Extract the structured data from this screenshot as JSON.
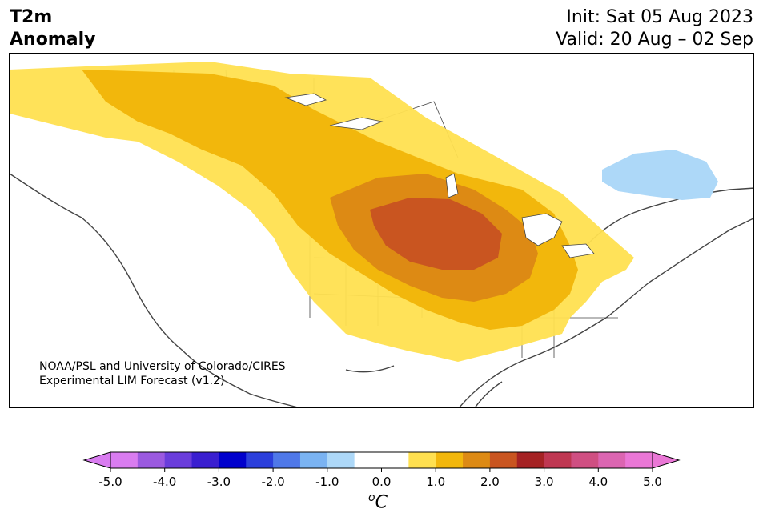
{
  "header": {
    "title_line1": "T2m",
    "title_line2": "Anomaly",
    "init": "Init: Sat 05 Aug 2023",
    "valid": "Valid: 20 Aug – 02 Sep"
  },
  "credit": {
    "line1": "NOAA/PSL and University of Colorado/CIRES",
    "line2": "Experimental LIM Forecast (v1.2)"
  },
  "colorbar": {
    "unit_main": "C",
    "unit_sup": "o",
    "ticks": [
      "-5.0",
      "-4.0",
      "-3.0",
      "-2.0",
      "-1.0",
      "0.0",
      "1.0",
      "2.0",
      "3.0",
      "4.0",
      "5.0"
    ],
    "colors": [
      "#d97cf0",
      "#9b59e0",
      "#6a3ddb",
      "#3a1fd0",
      "#0000cc",
      "#2b3fdb",
      "#4f78e8",
      "#7ab3f2",
      "#add8f8",
      "#ffffff",
      "#ffffff",
      "#ffe050",
      "#f2b70c",
      "#dd8a14",
      "#c95520",
      "#a52224",
      "#bf3752",
      "#cf4f82",
      "#db65b1",
      "#ea77d6"
    ],
    "min": -5.0,
    "max": 5.0
  },
  "map": {
    "layers": [
      "warm-anomaly-yellow",
      "warm-anomaly-gold",
      "warm-anomaly-orange",
      "warm-anomaly-dark-orange",
      "cool-anomaly-blue"
    ]
  }
}
